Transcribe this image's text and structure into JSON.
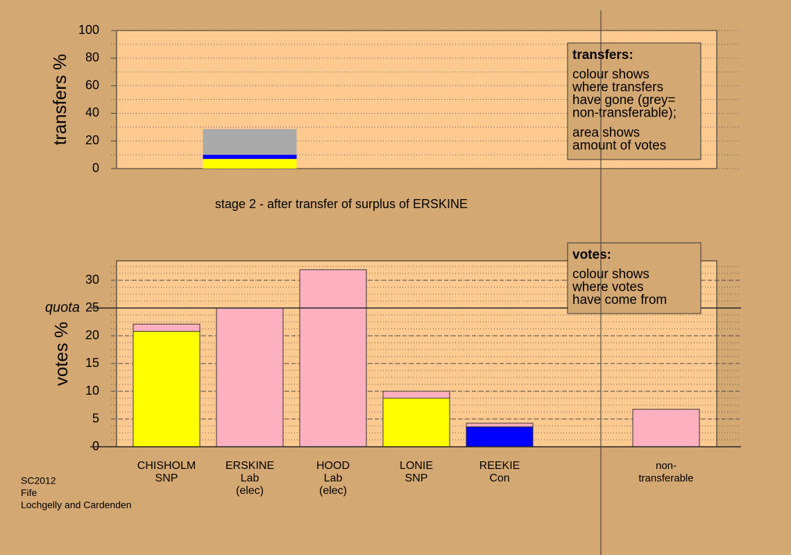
{
  "chart_data": [
    {
      "type": "bar",
      "stacked": true,
      "ylabel": "transfers %",
      "caption": "stage 2 - after transfer of surplus of ERSKINE",
      "categories": [
        null,
        null,
        null,
        null,
        null,
        null,
        null
      ],
      "series": [
        {
          "color": "#ffff00",
          "values": [
            null,
            7,
            null,
            null,
            null,
            null,
            null
          ]
        },
        {
          "color": "#0000ff",
          "values": [
            null,
            3,
            null,
            null,
            null,
            null,
            null
          ]
        },
        {
          "color": "#aaaaaa",
          "values": [
            null,
            18.6,
            null,
            null,
            null,
            null,
            null
          ]
        }
      ],
      "ylim": [
        0,
        100
      ],
      "yticks": [
        0,
        20,
        40,
        60,
        80,
        100
      ],
      "grid": true,
      "note": {
        "title": "transfers:",
        "paragraphs": [
          [
            "colour shows",
            "where transfers",
            "have gone (grey=",
            "non-transferable);"
          ],
          [
            "area shows",
            "amount of votes"
          ]
        ]
      }
    },
    {
      "type": "bar",
      "stacked": true,
      "ylabel": "votes %",
      "categories": [
        [
          "CHISHOLM",
          "SNP"
        ],
        [
          "ERSKINE",
          "Lab",
          "(elec)"
        ],
        [
          "HOOD",
          "Lab",
          "(elec)"
        ],
        [
          "LONIE",
          "SNP"
        ],
        [
          "REEKIE",
          "Con"
        ],
        null,
        [
          "non-",
          "transferable"
        ]
      ],
      "series": [
        {
          "color": "#ffff00",
          "values": [
            20.8,
            0,
            0,
            8.75,
            0,
            null,
            0
          ]
        },
        {
          "color": "#0000ff",
          "values": [
            0,
            0,
            0,
            0,
            3.6,
            null,
            0
          ]
        },
        {
          "color": "#ffb0c0",
          "values": [
            1.3,
            25,
            31.9,
            1.25,
            0.65,
            null,
            6.75
          ]
        }
      ],
      "ylim": [
        0,
        33.5
      ],
      "yticks": [
        0,
        5,
        10,
        15,
        20,
        25,
        30
      ],
      "grid": true,
      "quota": {
        "value": 25,
        "label": "quota"
      },
      "note": {
        "title": "votes:",
        "paragraphs": [
          [
            "colour shows",
            "where votes",
            "have come from"
          ]
        ]
      }
    }
  ],
  "footer": [
    "SC2012",
    "Fife",
    "Lochgelly and Cardenden"
  ]
}
